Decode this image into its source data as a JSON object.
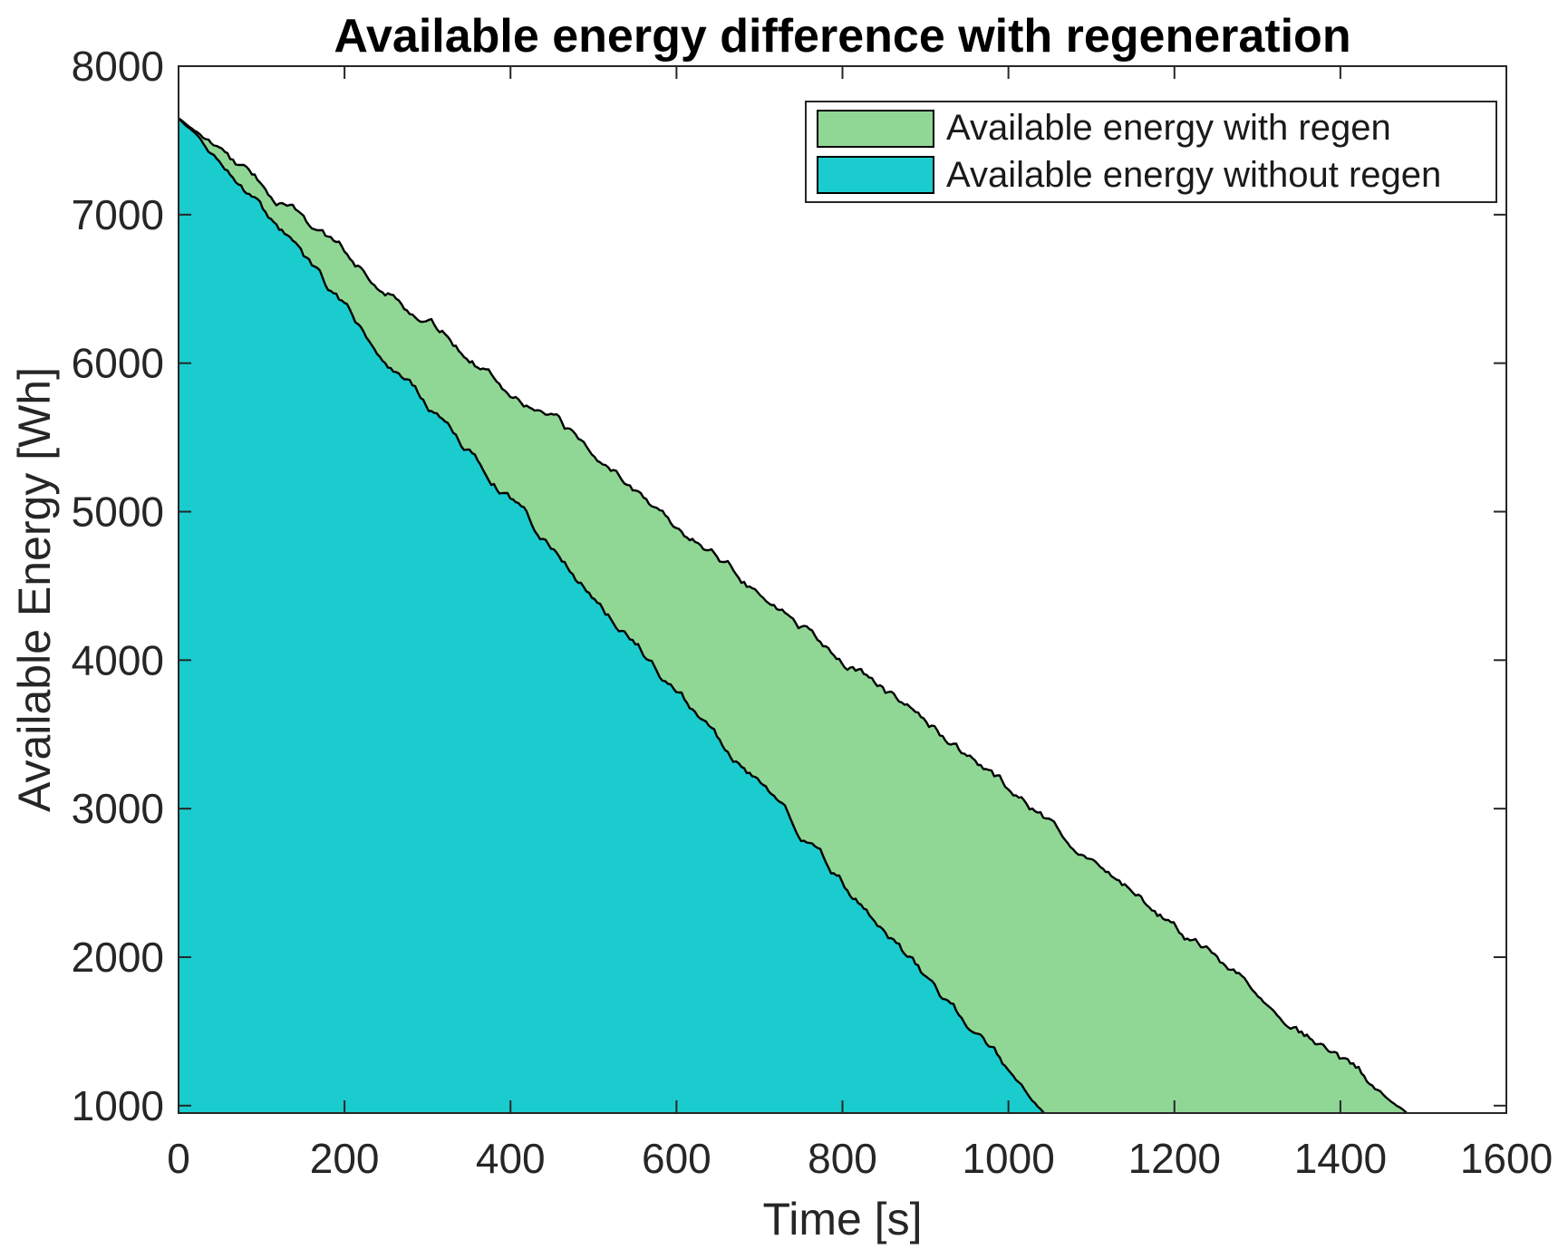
{
  "title": "Available energy difference with regeneration",
  "axes": {
    "x": {
      "label": "Time [s]",
      "ticks": [
        0,
        200,
        400,
        600,
        800,
        1000,
        1200,
        1400,
        1600
      ],
      "lim": [
        0,
        1600
      ]
    },
    "y": {
      "label": "Available Energy [Wh]",
      "ticks": [
        1000,
        2000,
        3000,
        4000,
        5000,
        6000,
        7000,
        8000
      ],
      "lim": [
        950,
        8000
      ]
    }
  },
  "legend": {
    "position": "top-right",
    "items": [
      {
        "label": "Available energy with regen",
        "color": "#90d795"
      },
      {
        "label": "Available energy without regen",
        "color": "#1accce"
      }
    ]
  },
  "colors": {
    "axis": "#262626",
    "tick_text": "#262626",
    "series_edge": "#000000",
    "plot_background": "#ffffff"
  },
  "chart_data": {
    "type": "area",
    "title": "Available energy difference with regeneration",
    "xlabel": "Time [s]",
    "ylabel": "Available Energy [Wh]",
    "xlim": [
      0,
      1600
    ],
    "ylim": [
      950,
      8000
    ],
    "grid": false,
    "legend_position": "top-right",
    "series": [
      {
        "name": "Available energy with regen",
        "color": "#90d795",
        "points": [
          [
            0,
            7650
          ],
          [
            100,
            7197
          ],
          [
            200,
            6745
          ],
          [
            300,
            6292
          ],
          [
            400,
            5839
          ],
          [
            500,
            5387
          ],
          [
            600,
            4934
          ],
          [
            700,
            4481
          ],
          [
            800,
            4028
          ],
          [
            900,
            3576
          ],
          [
            1000,
            3123
          ],
          [
            1100,
            2670
          ],
          [
            1200,
            2218
          ],
          [
            1300,
            1765
          ],
          [
            1400,
            1312
          ],
          [
            1480,
            950
          ]
        ]
      },
      {
        "name": "Available energy without regen",
        "color": "#1accce",
        "points": [
          [
            0,
            7650
          ],
          [
            100,
            7008
          ],
          [
            200,
            6365
          ],
          [
            300,
            5723
          ],
          [
            400,
            5080
          ],
          [
            500,
            4438
          ],
          [
            600,
            3796
          ],
          [
            700,
            3153
          ],
          [
            800,
            2511
          ],
          [
            900,
            1868
          ],
          [
            1000,
            1226
          ],
          [
            1043,
            950
          ]
        ]
      }
    ]
  }
}
